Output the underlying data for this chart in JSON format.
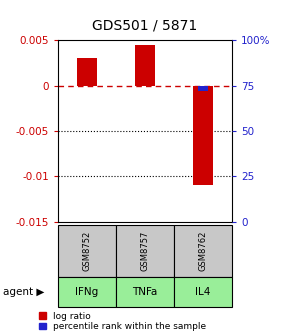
{
  "title": "GDS501 / 5871",
  "samples": [
    "GSM8752",
    "GSM8757",
    "GSM8762"
  ],
  "agents": [
    "IFNg",
    "TNFa",
    "IL4"
  ],
  "log_ratios": [
    0.003,
    0.0045,
    -0.011
  ],
  "percentile_ranks": [
    75,
    75,
    72
  ],
  "ylim_left": [
    -0.015,
    0.005
  ],
  "ylim_right": [
    0,
    100
  ],
  "yticks_left": [
    0.005,
    0,
    -0.005,
    -0.01,
    -0.015
  ],
  "yticks_right": [
    100,
    75,
    50,
    25,
    0
  ],
  "bar_color_red": "#cc0000",
  "bar_color_blue": "#2222cc",
  "dashed_zero_color": "#cc0000",
  "grid_color": "#000000",
  "sample_bg": "#c8c8c8",
  "agent_bg": "#99ee99",
  "bar_width": 0.35,
  "title_fontsize": 10,
  "tick_fontsize": 7.5,
  "legend_fontsize": 6.5
}
